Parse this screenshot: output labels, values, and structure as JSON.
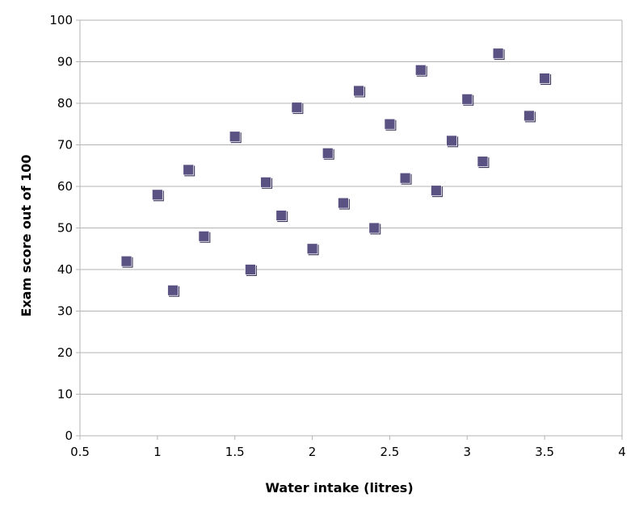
{
  "chart_data": {
    "type": "scatter",
    "title": "",
    "xlabel": "Water intake (litres)",
    "ylabel": "Exam score out of 100",
    "xlim": [
      0.5,
      4
    ],
    "ylim": [
      0,
      100
    ],
    "x_ticks": [
      "0.5",
      "1",
      "1.5",
      "2",
      "2.5",
      "3",
      "3.5",
      "4"
    ],
    "y_ticks": [
      "0",
      "10",
      "20",
      "30",
      "40",
      "50",
      "60",
      "70",
      "80",
      "90",
      "100"
    ],
    "grid": "horizontal",
    "legend": "none",
    "marker": "square",
    "marker_color": "#5a5282",
    "series": [
      {
        "points": [
          {
            "x": 0.8,
            "y": 42
          },
          {
            "x": 1.0,
            "y": 58
          },
          {
            "x": 1.1,
            "y": 35
          },
          {
            "x": 1.2,
            "y": 64
          },
          {
            "x": 1.3,
            "y": 48
          },
          {
            "x": 1.5,
            "y": 72
          },
          {
            "x": 1.6,
            "y": 40
          },
          {
            "x": 1.7,
            "y": 61
          },
          {
            "x": 1.8,
            "y": 53
          },
          {
            "x": 1.9,
            "y": 79
          },
          {
            "x": 2.0,
            "y": 45
          },
          {
            "x": 2.1,
            "y": 68
          },
          {
            "x": 2.2,
            "y": 56
          },
          {
            "x": 2.3,
            "y": 83
          },
          {
            "x": 2.4,
            "y": 50
          },
          {
            "x": 2.5,
            "y": 75
          },
          {
            "x": 2.6,
            "y": 62
          },
          {
            "x": 2.7,
            "y": 88
          },
          {
            "x": 2.8,
            "y": 59
          },
          {
            "x": 2.9,
            "y": 71
          },
          {
            "x": 3.0,
            "y": 81
          },
          {
            "x": 3.1,
            "y": 66
          },
          {
            "x": 3.2,
            "y": 92
          },
          {
            "x": 3.4,
            "y": 77
          },
          {
            "x": 3.5,
            "y": 86
          }
        ]
      }
    ]
  }
}
